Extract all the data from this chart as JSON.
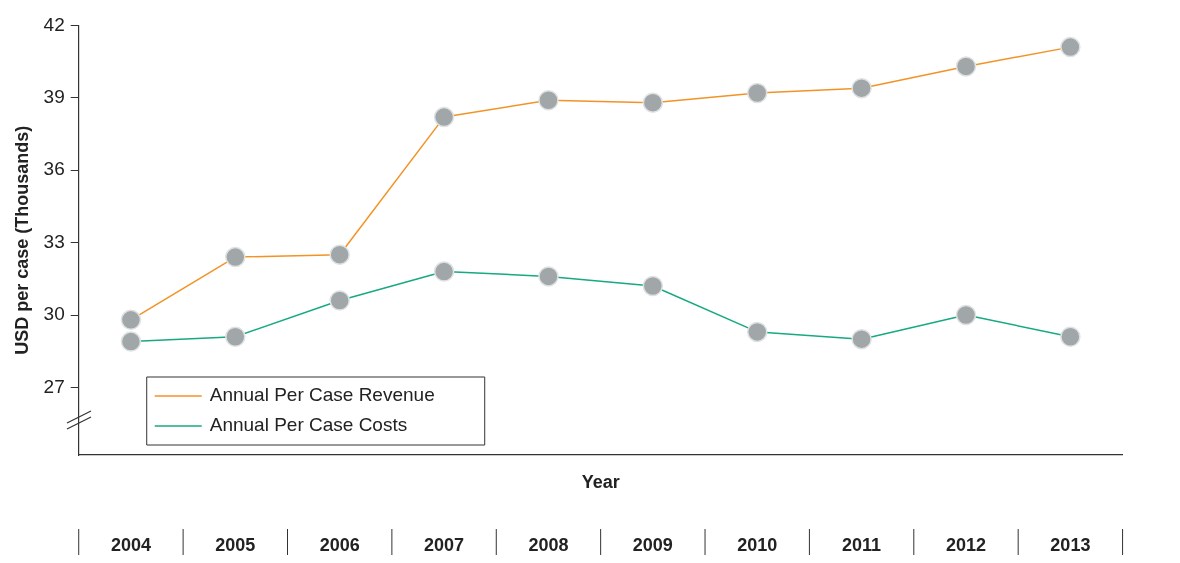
{
  "chart_data": {
    "type": "line",
    "xlabel": "Year",
    "ylabel": "USD per case (Thousands)",
    "categories": [
      "2004",
      "2005",
      "2006",
      "2007",
      "2008",
      "2009",
      "2010",
      "2011",
      "2012",
      "2013"
    ],
    "series": [
      {
        "name": "Annual Per Case Revenue",
        "color": "#f39325",
        "values": [
          29.8,
          32.4,
          32.5,
          38.2,
          38.9,
          38.8,
          39.2,
          39.4,
          40.3,
          41.1
        ]
      },
      {
        "name": "Annual Per Case Costs",
        "color": "#16a982",
        "values": [
          28.9,
          29.1,
          30.6,
          31.8,
          31.6,
          31.2,
          29.3,
          29.0,
          30.0,
          29.1
        ]
      }
    ],
    "ylim": [
      24.2,
      42
    ],
    "yticks": [
      27,
      30,
      33,
      36,
      39,
      42
    ],
    "grid": false,
    "legend": "bottom left",
    "marker": "circle",
    "line_style": "solid"
  }
}
